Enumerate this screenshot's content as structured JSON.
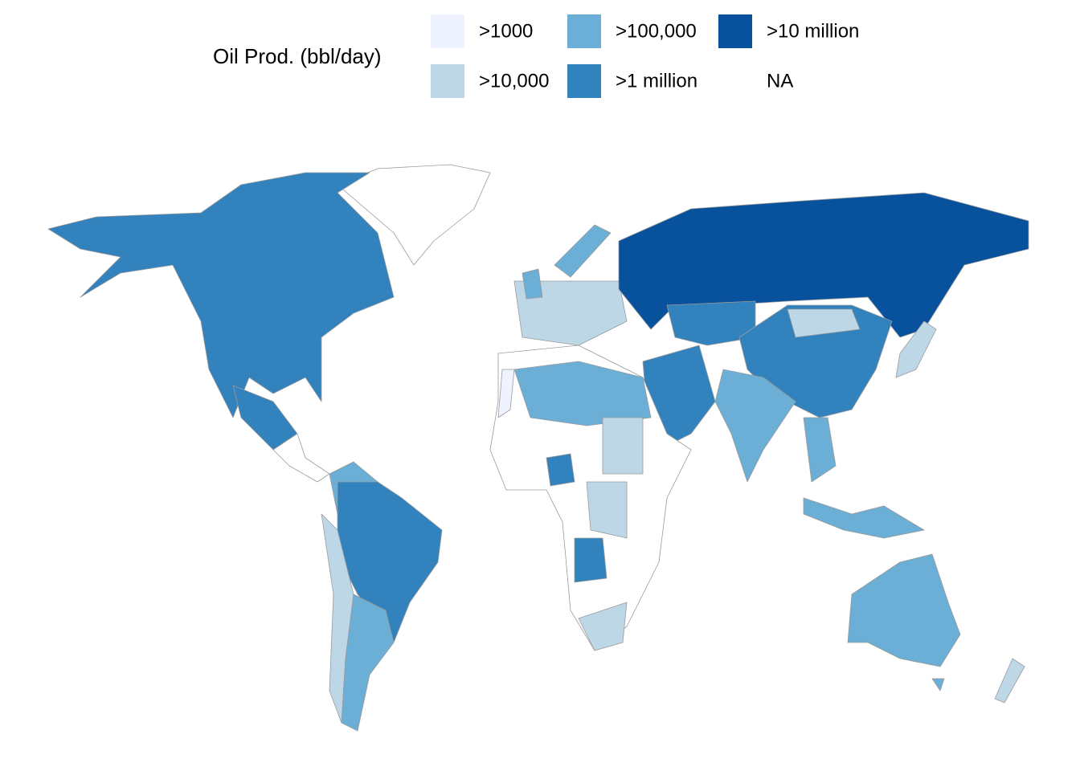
{
  "legend": {
    "title": "Oil Prod. (bbl/day)",
    "items": [
      {
        "label": ">1000",
        "color": "#eff3ff"
      },
      {
        "label": ">10,000",
        "color": "#bdd7e7"
      },
      {
        "label": ">100,000",
        "color": "#6baed6"
      },
      {
        "label": ">1 million",
        "color": "#3182bd"
      },
      {
        "label": ">10 million",
        "color": "#08519c"
      },
      {
        "label": "NA",
        "color": "#ffffff"
      }
    ]
  }
}
